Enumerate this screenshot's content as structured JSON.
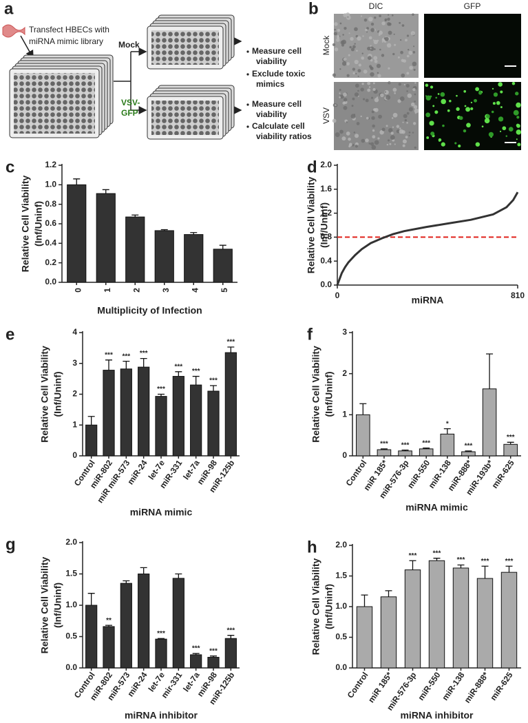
{
  "panel_a": {
    "label": "a",
    "transfect": [
      "Transfect HBECs with",
      "miRNA mimic library"
    ],
    "mock": "Mock",
    "vsv": [
      "VSV-",
      "GFP"
    ],
    "mock_steps": [
      [
        "Measure cell",
        "viability"
      ],
      [
        "Exclude toxic",
        "mimics"
      ]
    ],
    "vsv_steps": [
      [
        "Measure cell",
        "viability"
      ],
      [
        "Calculate cell",
        "viability ratios"
      ]
    ]
  },
  "panel_b": {
    "label": "b",
    "columns": [
      "DIC",
      "GFP"
    ],
    "rows": [
      "Mock",
      "VSV"
    ]
  },
  "chart_data": [
    {
      "panel_label": "c",
      "type": "bar",
      "categories": [
        "0",
        "1",
        "2",
        "3",
        "4",
        "5"
      ],
      "values": [
        1.0,
        0.91,
        0.67,
        0.53,
        0.49,
        0.34
      ],
      "errors": [
        0.06,
        0.04,
        0.02,
        0.01,
        0.02,
        0.04
      ],
      "color": "#333333",
      "ylim": [
        0,
        1.2
      ],
      "yticks": [
        {
          "value": 0,
          "label": "0.0"
        },
        0.2,
        0.4,
        0.6,
        0.8,
        {
          "value": 1,
          "label": "1.0"
        },
        1.2
      ],
      "xlabel": "Multiplicity of Infection",
      "ylabel": [
        "Relative Cell Viability",
        "(Inf/Uninf)"
      ]
    },
    {
      "panel_label": "d",
      "type": "line",
      "x": [
        0,
        10,
        20,
        35,
        50,
        80,
        110,
        150,
        200,
        250,
        300,
        400,
        500,
        600,
        700,
        760,
        790,
        810
      ],
      "values": [
        0,
        0.1,
        0.2,
        0.3,
        0.38,
        0.5,
        0.6,
        0.7,
        0.78,
        0.85,
        0.9,
        0.97,
        1.03,
        1.09,
        1.18,
        1.3,
        1.42,
        1.55
      ],
      "color": "#333333",
      "xlim": [
        0,
        810
      ],
      "ylim": [
        0,
        2
      ],
      "xticks": [
        0,
        810
      ],
      "yticks": [
        {
          "value": 0,
          "label": "0.0"
        },
        0.4,
        0.8,
        1.2,
        1.6,
        {
          "value": 2,
          "label": "2.0"
        }
      ],
      "threshold": 0.8,
      "threshold_color": "#e0201a",
      "xlabel": "miRNA",
      "ylabel": [
        "Relative Cell Viability",
        "(Inf/Uninf)"
      ]
    },
    {
      "panel_label": "e",
      "type": "bar",
      "categories": [
        "Control",
        "miR-802",
        "miR miR-573",
        "miR-24",
        "let-7e",
        "miR-331",
        "let-7a",
        "miR-98",
        "miR-125b"
      ],
      "values": [
        1.0,
        2.78,
        2.82,
        2.88,
        1.93,
        2.58,
        2.3,
        2.1,
        3.35
      ],
      "errors": [
        0.28,
        0.33,
        0.25,
        0.28,
        0.07,
        0.15,
        0.28,
        0.18,
        0.18
      ],
      "annotations": [
        null,
        "***",
        "***",
        "***",
        "***",
        "***",
        "***",
        "***",
        "***"
      ],
      "color": "#333333",
      "ylim": [
        0,
        4
      ],
      "yticks": [
        0,
        1,
        2,
        3,
        4
      ],
      "xlabel": "miRNA mimic",
      "ylabel": [
        "Relative Cell Viability",
        "(Inf/Uninf)"
      ]
    },
    {
      "panel_label": "f",
      "type": "bar",
      "categories": [
        "Control",
        "miR 185*",
        "miR-576-3p",
        "miR-550",
        "miR-138",
        "miR-888*",
        "miR-193b*",
        "miR-625"
      ],
      "values": [
        1.0,
        0.15,
        0.12,
        0.17,
        0.53,
        0.1,
        1.63,
        0.28
      ],
      "errors": [
        0.27,
        0.02,
        0.02,
        0.02,
        0.13,
        0.02,
        0.85,
        0.05
      ],
      "annotations": [
        null,
        "***",
        "***",
        "***",
        "*",
        "***",
        null,
        "***"
      ],
      "color": "#aaaaaa",
      "ylim": [
        0,
        3
      ],
      "yticks": [
        0,
        1,
        2,
        3
      ],
      "xlabel": "miRNA mimic",
      "ylabel": [
        "Relative Cell Viability",
        "(Inf/Uninf)"
      ]
    },
    {
      "panel_label": "g",
      "type": "bar",
      "categories": [
        "Control",
        "miR-802",
        "miR-573",
        "miR-24",
        "let-7e",
        "mir-331",
        "let-7a",
        "miR-98",
        "miR-125b"
      ],
      "values": [
        1.0,
        0.66,
        1.35,
        1.5,
        0.46,
        1.43,
        0.21,
        0.17,
        0.47
      ],
      "errors": [
        0.19,
        0.02,
        0.04,
        0.1,
        0.01,
        0.07,
        0.02,
        0.02,
        0.05
      ],
      "annotations": [
        null,
        "**",
        null,
        null,
        "***",
        null,
        "***",
        "***",
        "***"
      ],
      "color": "#333333",
      "ylim": [
        0,
        2
      ],
      "yticks": [
        {
          "value": 0,
          "label": "0.0"
        },
        0.5,
        {
          "value": 1,
          "label": "1.0"
        },
        1.5,
        {
          "value": 2,
          "label": "2.0"
        }
      ],
      "xlabel": "miRNA inhibitor",
      "ylabel": [
        "Relative Cell Viability",
        "(Inf/Uninf)"
      ]
    },
    {
      "panel_label": "h",
      "type": "bar",
      "categories": [
        "Control",
        "miR 185*",
        "miR-576-3p",
        "miR-550",
        "miR-138",
        "miR-888*",
        "miR-625"
      ],
      "values": [
        1.0,
        1.16,
        1.6,
        1.75,
        1.63,
        1.46,
        1.56
      ],
      "errors": [
        0.19,
        0.1,
        0.15,
        0.04,
        0.05,
        0.2,
        0.1
      ],
      "annotations": [
        null,
        null,
        "***",
        "***",
        "***",
        "***",
        "***"
      ],
      "color": "#aaaaaa",
      "ylim": [
        0,
        2
      ],
      "yticks": [
        {
          "value": 0,
          "label": "0.0"
        },
        0.5,
        {
          "value": 1,
          "label": "1.0"
        },
        1.5,
        {
          "value": 2,
          "label": "2.0"
        }
      ],
      "xlabel": "miRNA inhibitor",
      "ylabel": [
        "Relative Cell Viability",
        "(Inf/Uninf)"
      ]
    }
  ]
}
